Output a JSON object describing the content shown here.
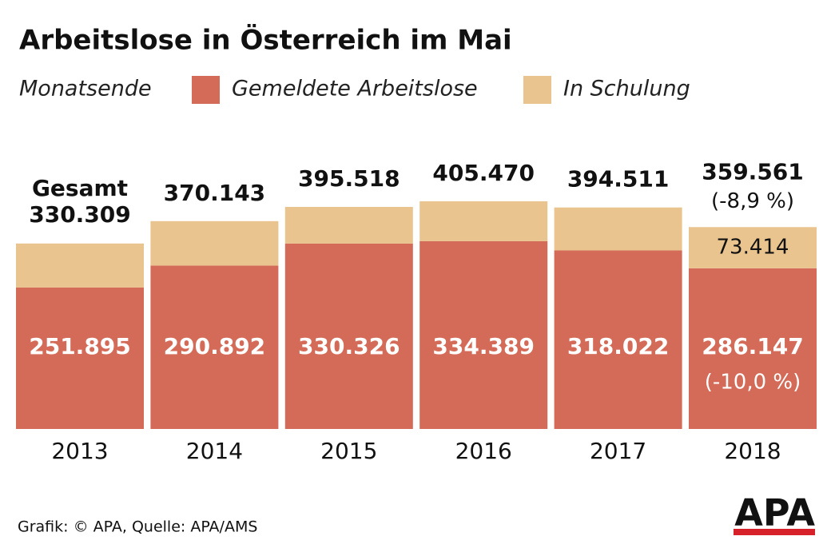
{
  "chart_data": {
    "type": "stacked-bar",
    "title": "Arbeitslose in Österreich im Mai",
    "subtitle": "Monatsende",
    "categories": [
      "2013",
      "2014",
      "2015",
      "2016",
      "2017",
      "2018"
    ],
    "series": [
      {
        "name": "Gemeldete Arbeitslose",
        "color": "#d46b58",
        "values": [
          251895,
          290892,
          330326,
          334389,
          318022,
          286147
        ],
        "value_labels": [
          "251.895",
          "290.892",
          "330.326",
          "334.389",
          "318.022",
          "286.147"
        ],
        "notes": [
          null,
          null,
          null,
          null,
          null,
          "(-10,0 %)"
        ]
      },
      {
        "name": "In Schulung",
        "color": "#e9c48f",
        "values": [
          78414,
          79251,
          65192,
          71081,
          76489,
          73414
        ],
        "value_labels": [
          null,
          null,
          null,
          null,
          null,
          "73.414"
        ],
        "notes": [
          null,
          null,
          null,
          null,
          null,
          null
        ]
      }
    ],
    "totals": {
      "name": "Gesamt",
      "values": [
        330309,
        370143,
        395518,
        405470,
        394511,
        359561
      ],
      "value_labels": [
        "330.309",
        "370.143",
        "395.518",
        "405.470",
        "394.511",
        "359.561"
      ],
      "notes": [
        null,
        null,
        null,
        null,
        null,
        "(-8,9 %)"
      ]
    },
    "source": "Grafik: © APA, Quelle: APA/AMS",
    "logo": "APA"
  }
}
